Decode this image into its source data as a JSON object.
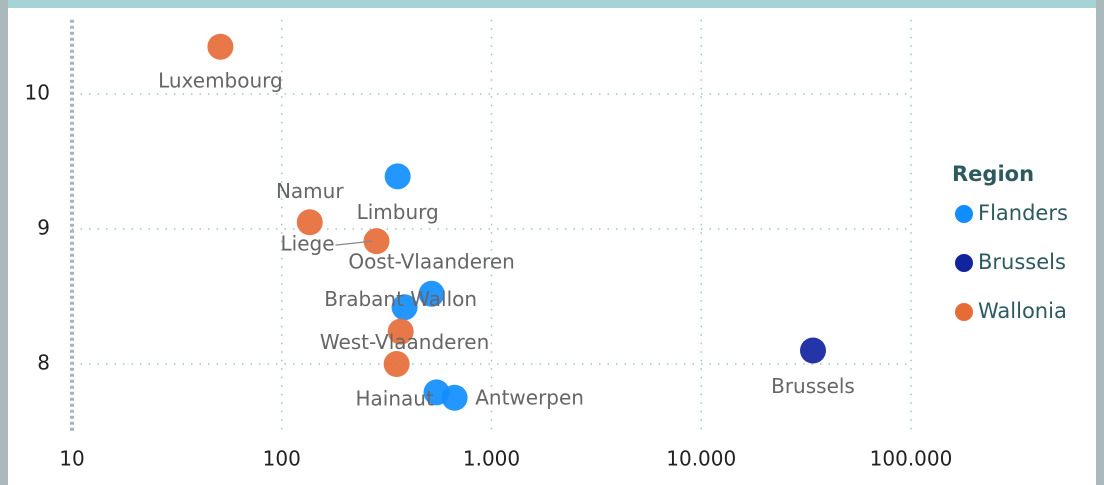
{
  "chart_data": {
    "type": "scatter",
    "xscale": "log",
    "xlim": [
      10,
      100000
    ],
    "xticks": [
      10,
      100,
      {
        "value": 1000,
        "label": "1.000"
      },
      {
        "value": 10000,
        "label": "10.000"
      },
      {
        "value": 100000,
        "label": "100.000"
      }
    ],
    "ylim": [
      7.5,
      10.55
    ],
    "yticks": [
      8,
      9,
      10
    ],
    "grid": true,
    "legend_title": "Region",
    "legend_position": "right",
    "series": [
      {
        "name": "Flanders",
        "color": "#118dff",
        "x": [
          357,
          518,
          385,
          547,
          667
        ],
        "values": [
          9.39,
          8.52,
          8.42,
          7.79,
          7.75
        ],
        "labels": [
          "Limburg",
          "Oost-Vlaanderen",
          "West-Vlaanderen",
          null,
          "Antwerpen"
        ]
      },
      {
        "name": "Brussels",
        "color": "#12239e",
        "x": [
          34100
        ],
        "values": [
          8.1
        ],
        "labels": [
          "Brussels"
        ]
      },
      {
        "name": "Wallonia",
        "color": "#e66c37",
        "x": [
          51,
          136,
          283,
          369,
          353
        ],
        "values": [
          10.35,
          9.05,
          8.91,
          8.24,
          8.0
        ],
        "labels": [
          "Luxembourg",
          "Namur",
          "Liege",
          "Brabant Wallon",
          "Hainaut"
        ]
      }
    ]
  }
}
